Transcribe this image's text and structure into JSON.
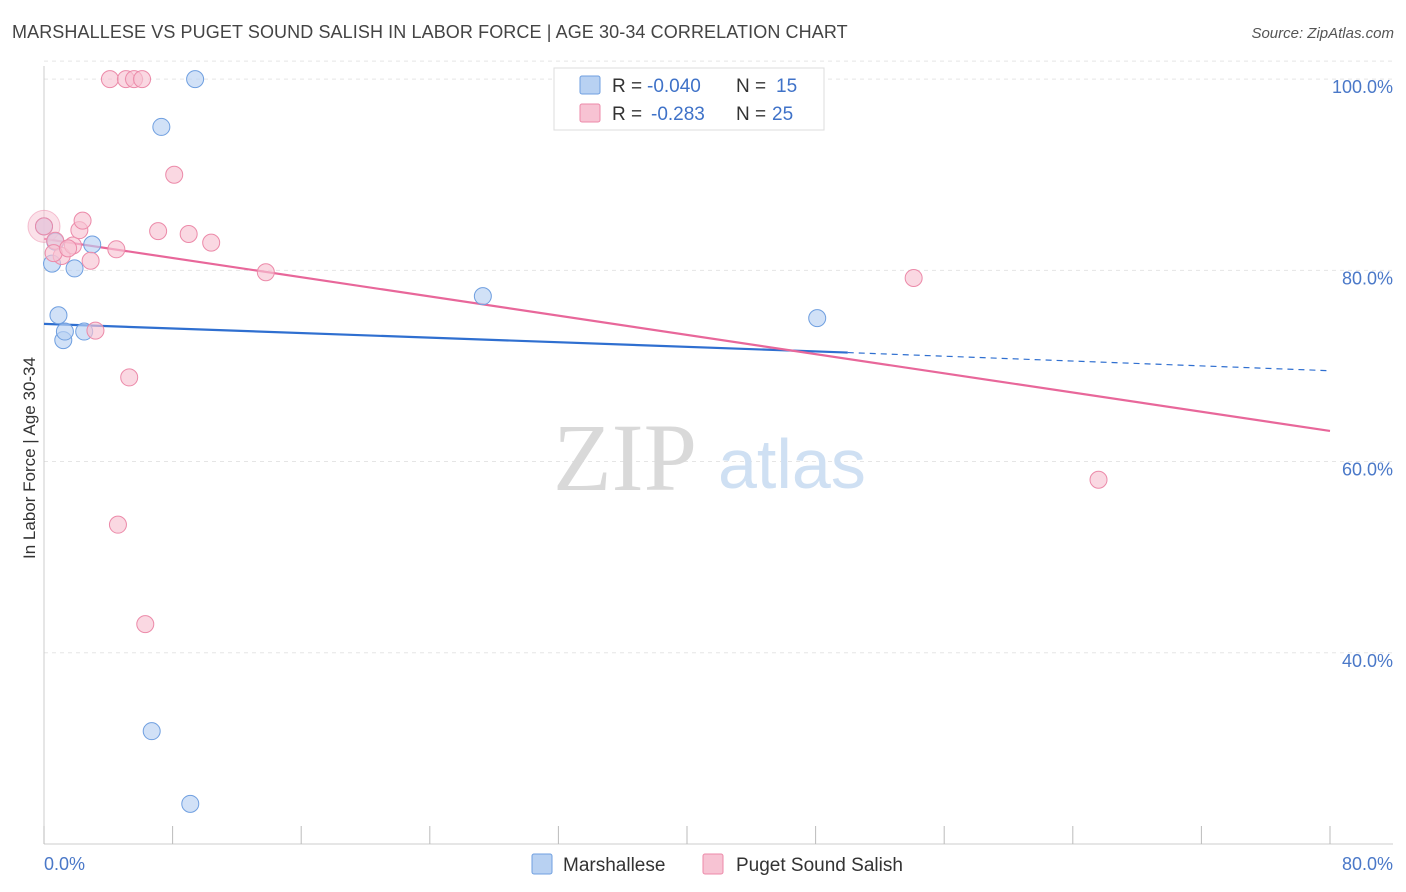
{
  "title": "MARSHALLESE VS PUGET SOUND SALISH IN LABOR FORCE | AGE 30-34 CORRELATION CHART",
  "source": "Source: ZipAtlas.com",
  "watermark": {
    "zip": "ZIP",
    "atlas": "atlas"
  },
  "colors": {
    "marshallese_fill": "#b8d1f2",
    "marshallese_stroke": "#6f9fe0",
    "marshallese_line": "#2f6fd0",
    "puget_fill": "#f7c3d3",
    "puget_stroke": "#ec8aa9",
    "puget_line": "#e8679a",
    "grid": "#e5e5e5",
    "tick_text": "#4a78c8"
  },
  "legend_box": {
    "rows": [
      {
        "r_label": "R =",
        "r_value": "-0.040",
        "n_label": "N =",
        "n_value": "15"
      },
      {
        "r_label": "R =",
        "r_value": "-0.283",
        "n_label": "N =",
        "n_value": "25"
      }
    ]
  },
  "chart_data": {
    "type": "scatter",
    "title": "MARSHALLESE VS PUGET SOUND SALISH IN LABOR FORCE | AGE 30-34 CORRELATION CHART",
    "xlabel": "",
    "ylabel": "In Labor Force | Age 30-34",
    "xlim": [
      0,
      80
    ],
    "ylim": [
      20,
      102
    ],
    "x_tick_labels": [
      "0.0%",
      "80.0%"
    ],
    "y_ticks": [
      40,
      60,
      80,
      100
    ],
    "y_tick_labels": [
      "40.0%",
      "60.0%",
      "80.0%",
      "100.0%"
    ],
    "grid": true,
    "legend_position": "top-center",
    "series": [
      {
        "name": "Marshallese",
        "r": -0.04,
        "n": 15,
        "points": [
          [
            0.0,
            84.6
          ],
          [
            0.5,
            80.7
          ],
          [
            0.7,
            83.0
          ],
          [
            0.9,
            75.3
          ],
          [
            1.2,
            72.7
          ],
          [
            1.3,
            73.6
          ],
          [
            1.9,
            80.2
          ],
          [
            2.5,
            73.6
          ],
          [
            3.0,
            82.7
          ],
          [
            7.3,
            95.0
          ],
          [
            9.4,
            100.0
          ],
          [
            6.7,
            31.8
          ],
          [
            9.1,
            24.2
          ],
          [
            27.3,
            77.3
          ],
          [
            48.1,
            75.0
          ]
        ],
        "trend": {
          "x0": 0,
          "y0": 74.4,
          "x1": 50,
          "y1": 71.4,
          "dashed_to_x": 80,
          "dashed_to_y": 69.5
        }
      },
      {
        "name": "Puget Sound Salish",
        "r": -0.283,
        "n": 25,
        "points": [
          [
            0.0,
            84.6
          ],
          [
            0.7,
            83.1
          ],
          [
            1.1,
            81.5
          ],
          [
            1.8,
            82.6
          ],
          [
            2.2,
            84.2
          ],
          [
            2.4,
            85.2
          ],
          [
            2.9,
            81.0
          ],
          [
            3.2,
            73.7
          ],
          [
            4.1,
            100.0
          ],
          [
            5.1,
            100.0
          ],
          [
            5.6,
            100.0
          ],
          [
            6.1,
            100.0
          ],
          [
            5.3,
            68.8
          ],
          [
            4.6,
            53.4
          ],
          [
            6.3,
            43.0
          ],
          [
            7.1,
            84.1
          ],
          [
            8.1,
            90.0
          ],
          [
            9.0,
            83.8
          ],
          [
            10.4,
            82.9
          ],
          [
            13.8,
            79.8
          ],
          [
            4.5,
            82.2
          ],
          [
            54.1,
            79.2
          ],
          [
            65.6,
            58.1
          ],
          [
            0.6,
            81.8
          ],
          [
            1.5,
            82.3
          ]
        ],
        "trend": {
          "x0": 0,
          "y0": 83.3,
          "x1": 80,
          "y1": 63.2
        }
      }
    ]
  }
}
